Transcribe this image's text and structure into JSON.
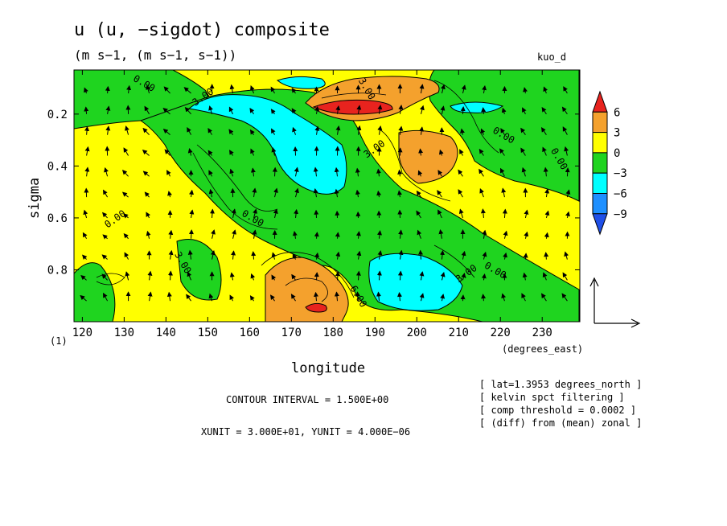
{
  "figure": {
    "title": "u (u, −sigdot) composite",
    "units": "(m s−1, (m s−1, s−1))",
    "tag": "kuo_d",
    "contour_interval": "CONTOUR INTERVAL = 1.500E+00",
    "vector_units": "XUNIT = 3.000E+01, YUNIT = 4.000E−06",
    "notes": [
      "[ lat=1.3953 degrees_north ]",
      "[ kelvin spct filtering ]",
      "[ comp threshold = 0.0002 ]",
      "[ (diff) from (mean) zonal ]"
    ],
    "panel_marker": "(1)"
  },
  "chart_data": {
    "type": "heatmap",
    "title": "u (u, −sigdot) composite",
    "xlabel": "longitude",
    "xunits": "(degrees_east)",
    "ylabel": "sigma",
    "xlim": [
      118,
      239
    ],
    "ylim": [
      1.0,
      0.03
    ],
    "y_inverted": true,
    "xticks": [
      120,
      130,
      140,
      150,
      160,
      170,
      180,
      190,
      200,
      210,
      220,
      230
    ],
    "yticks": [
      0.2,
      0.4,
      0.6,
      0.8
    ],
    "ytick_labels": [
      "0.2",
      "0.4",
      "0.6",
      "0.8"
    ],
    "colorbar": {
      "labels": [
        "6",
        "3",
        "0",
        "−3",
        "−6",
        "−9"
      ],
      "levels": [
        -9,
        -6,
        -3,
        0,
        3,
        6
      ],
      "bins": [
        {
          "range": ">6",
          "color": "#e8231e"
        },
        {
          "range": "3 to 6",
          "color": "#f4a12d"
        },
        {
          "range": "0 to 3",
          "color": "#ffff00"
        },
        {
          "range": "−3 to 0",
          "color": "#1fd41f"
        },
        {
          "range": "−6 to −3",
          "color": "#00ffff"
        },
        {
          "range": "−9 to −6",
          "color": "#1e90ff"
        },
        {
          "range": "<−9",
          "color": "#2050e8"
        }
      ]
    },
    "contour_labels": [
      "0.00",
      "3.00",
      "3.00",
      "0.00",
      "3.00",
      "0.00",
      "0.00",
      "0.00",
      "3.00",
      "0.00",
      "3.00",
      "6.00"
    ],
    "regions": [
      {
        "value_range": "0 to 3",
        "lon": [
          118,
          239
        ],
        "sigma": [
          0.03,
          1.0
        ],
        "note": "background"
      },
      {
        "value_range": "−3 to 0",
        "lon": [
          118,
          147
        ],
        "sigma": [
          0.03,
          0.25
        ],
        "note": "upper-left negative"
      },
      {
        "value_range": "−3 to 0",
        "lon": [
          140,
          215
        ],
        "sigma": [
          0.15,
          0.9
        ],
        "note": "diagonal negative band"
      },
      {
        "value_range": "−3 to 0",
        "lon": [
          205,
          239
        ],
        "sigma": [
          0.05,
          0.55
        ],
        "note": "upper-right negative"
      },
      {
        "value_range": "−6 to −3",
        "lon": [
          146,
          186
        ],
        "sigma": [
          0.1,
          0.5
        ],
        "note": "upper cyan minimum"
      },
      {
        "value_range": "−6 to −3",
        "lon": [
          190,
          211
        ],
        "sigma": [
          0.72,
          0.96
        ],
        "note": "lower cyan minimum"
      },
      {
        "value_range": "3 to 6",
        "lon": [
          176,
          208
        ],
        "sigma": [
          0.08,
          0.2
        ],
        "note": "upper positive"
      },
      {
        "value_range": ">6",
        "lon": [
          180,
          193
        ],
        "sigma": [
          0.12,
          0.18
        ],
        "note": "upper maximum"
      },
      {
        "value_range": "3 to 6",
        "lon": [
          193,
          210
        ],
        "sigma": [
          0.25,
          0.43
        ],
        "note": "mid-right positive"
      },
      {
        "value_range": "3 to 6",
        "lon": [
          165,
          188
        ],
        "sigma": [
          0.74,
          1.0
        ],
        "note": "lower positive"
      },
      {
        "value_range": ">6",
        "lon": [
          174,
          180
        ],
        "sigma": [
          0.94,
          0.98
        ],
        "note": "lower maximum"
      }
    ],
    "vectors": {
      "name": "(u, −sigdot)",
      "reference_vector": {
        "x": "3.000E+01",
        "y": "4.000E−06"
      }
    }
  }
}
